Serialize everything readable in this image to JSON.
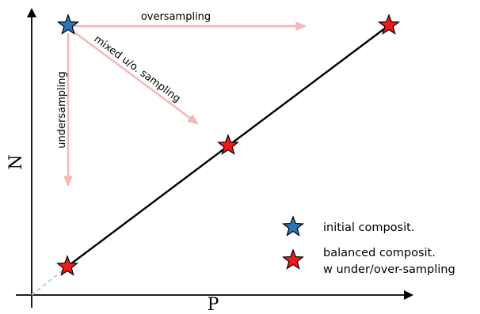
{
  "axes": {
    "x_label": "P",
    "y_label": "N"
  },
  "arrows": {
    "oversampling": "oversampling",
    "mixed": "mixed u/o. sampling",
    "undersampling": "undersampling"
  },
  "legend": {
    "initial": "initial composit.",
    "balanced_line1": "balanced composit.",
    "balanced_line2": "w under/over-sampling"
  },
  "colors": {
    "initial_star": "#2b76b6",
    "balanced_star": "#ef1a1a",
    "arrow": "#f4b6b6",
    "line": "#000000",
    "dashed": "#c8c8c8"
  }
}
